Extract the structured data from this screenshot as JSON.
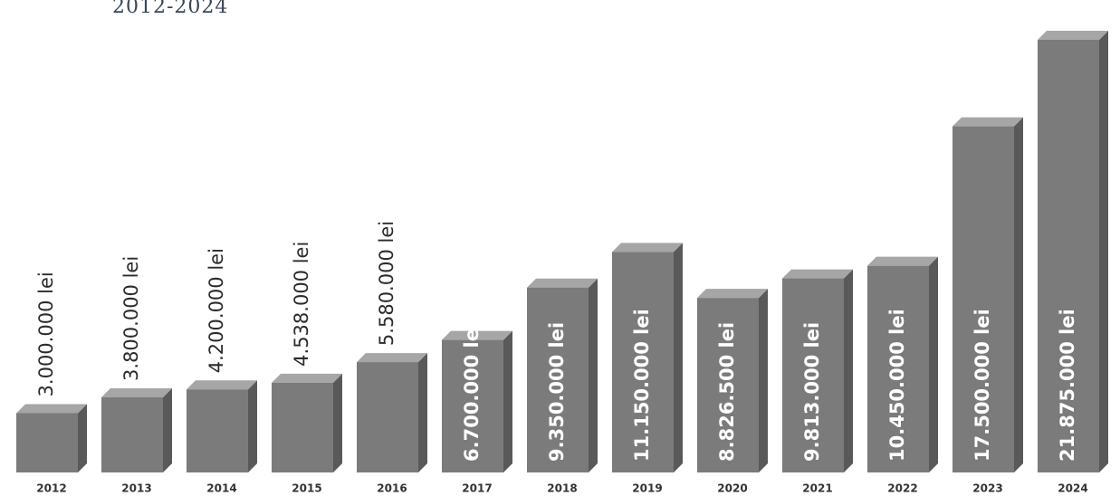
{
  "chart_data": {
    "type": "bar3d",
    "title": "2012-2024",
    "categories": [
      "2012",
      "2013",
      "2014",
      "2015",
      "2016",
      "2017",
      "2018",
      "2019",
      "2020",
      "2021",
      "2022",
      "2023",
      "2024"
    ],
    "values": [
      3000000,
      3800000,
      4200000,
      4538000,
      5580000,
      6700000,
      9350000,
      11150000,
      8826500,
      9813000,
      10450000,
      17500000,
      21875000
    ],
    "value_labels": [
      "3.000.000 lei",
      "3.800.000 lei",
      "4.200.000 lei",
      "4.538.000 lei",
      "5.580.000 lei",
      "6.700.000 lei",
      "9.350.000 lei",
      "11.150.000 lei",
      "8.826.500 lei",
      "9.813.000 lei",
      "10.450.000 lei",
      "17.500.000 lei",
      "21.875.000 lei"
    ],
    "color": "#7b7b7b"
  }
}
